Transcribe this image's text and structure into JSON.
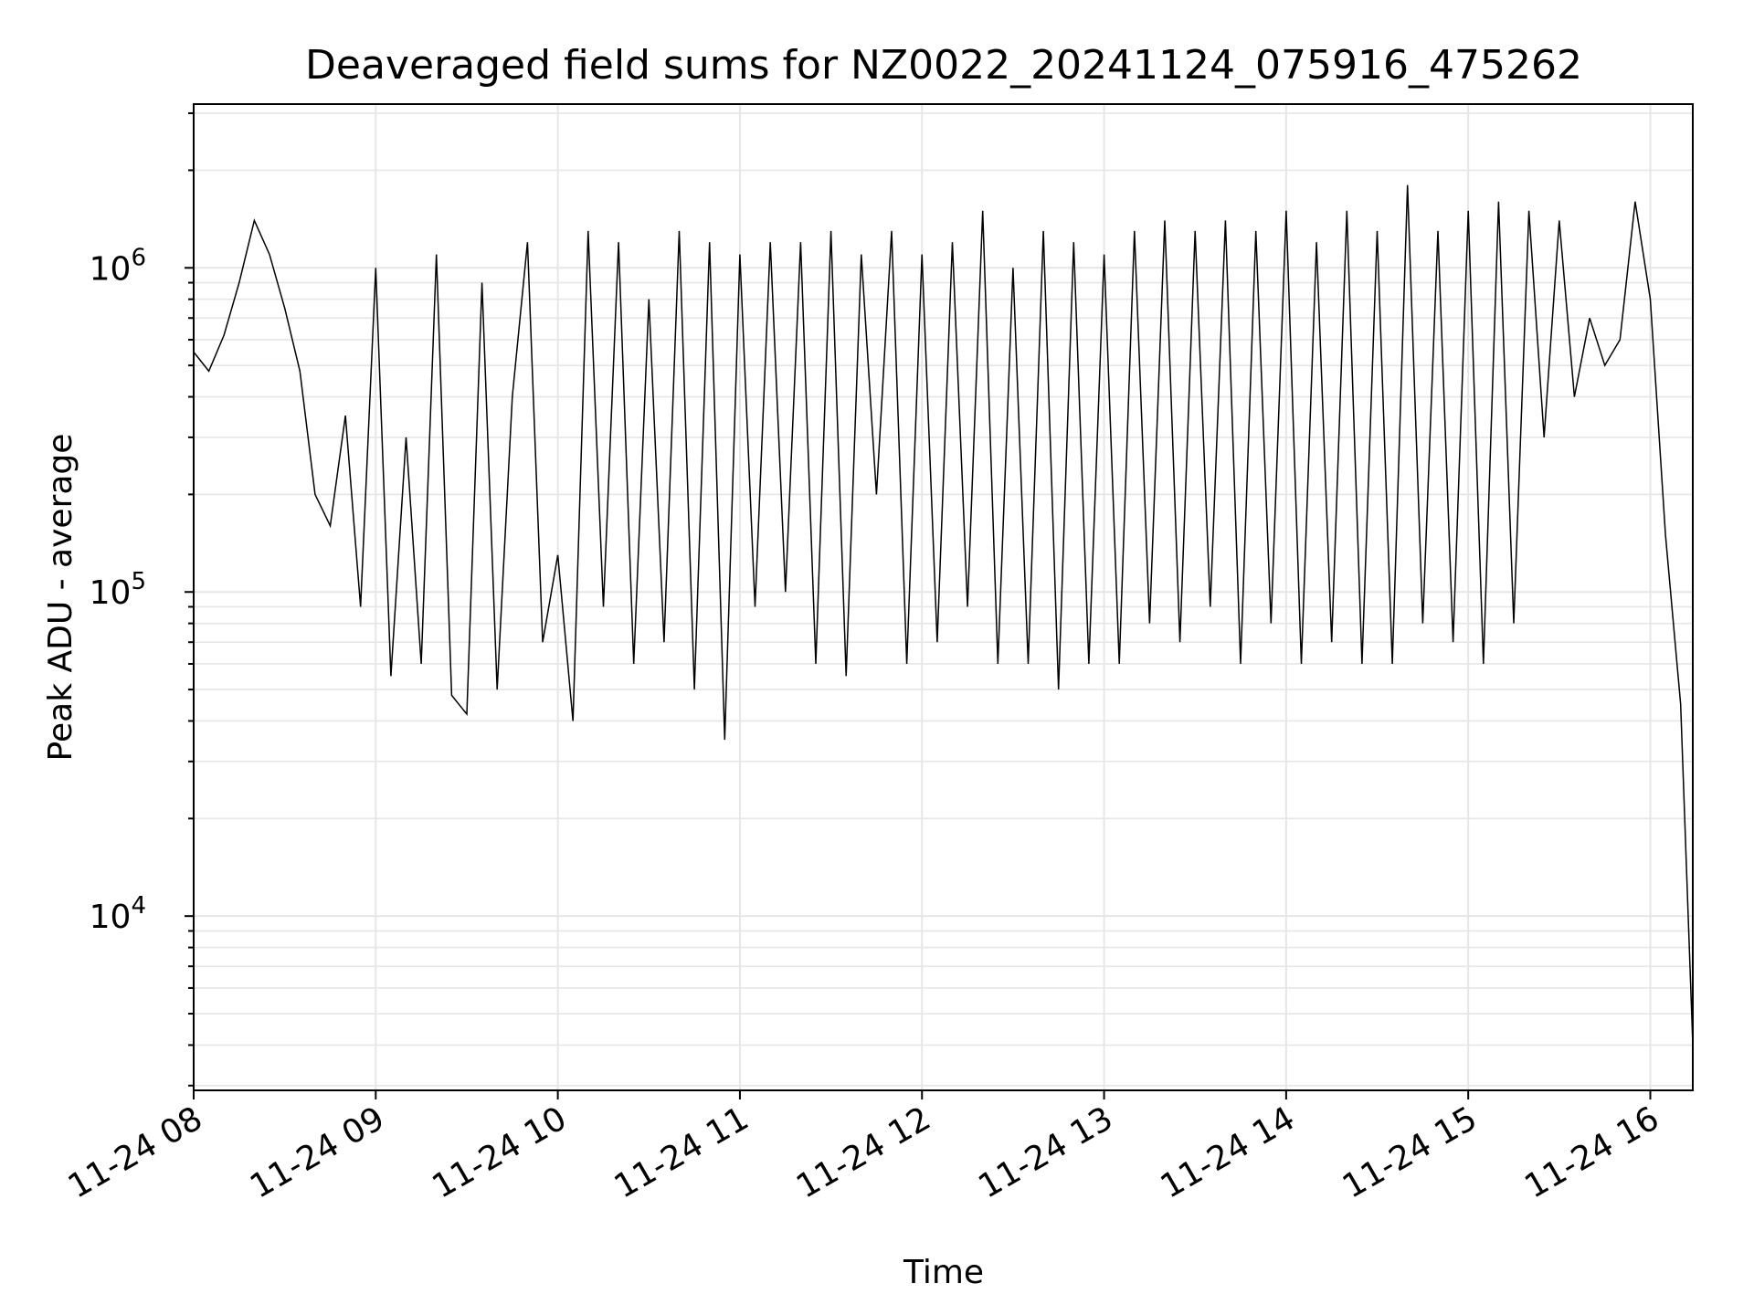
{
  "chart_data": {
    "type": "line",
    "title": "Deaveraged field sums for NZ0022_20241124_075916_475262",
    "xlabel": "Time",
    "ylabel": "Peak ADU - average",
    "yscale": "log",
    "ylim": [
      2900,
      3200000
    ],
    "xlim": [
      "11-24 08:00",
      "11-24 16:14"
    ],
    "grid": true,
    "legend": "none",
    "line_color": "#000000",
    "grid_color": "#e6e6e6",
    "x_ticks": [
      "11-24 08",
      "11-24 09",
      "11-24 10",
      "11-24 11",
      "11-24 12",
      "11-24 13",
      "11-24 14",
      "11-24 15",
      "11-24 16"
    ],
    "y_ticks": [
      {
        "value": 10000,
        "base": "10",
        "exp": "4"
      },
      {
        "value": 100000,
        "base": "10",
        "exp": "5"
      },
      {
        "value": 1000000,
        "base": "10",
        "exp": "6"
      }
    ],
    "series": [
      {
        "x": [
          "08:00",
          "08:05",
          "08:10",
          "08:15",
          "08:20",
          "08:25",
          "08:30",
          "08:35",
          "08:40",
          "08:45",
          "08:50",
          "08:55",
          "09:00",
          "09:05",
          "09:10",
          "09:15",
          "09:20",
          "09:25",
          "09:30",
          "09:35",
          "09:40",
          "09:45",
          "09:50",
          "09:55",
          "10:00",
          "10:05",
          "10:10",
          "10:15",
          "10:20",
          "10:25",
          "10:30",
          "10:35",
          "10:40",
          "10:45",
          "10:50",
          "10:55",
          "11:00",
          "11:05",
          "11:10",
          "11:15",
          "11:20",
          "11:25",
          "11:30",
          "11:35",
          "11:40",
          "11:45",
          "11:50",
          "11:55",
          "12:00",
          "12:05",
          "12:10",
          "12:15",
          "12:20",
          "12:25",
          "12:30",
          "12:35",
          "12:40",
          "12:45",
          "12:50",
          "12:55",
          "13:00",
          "13:05",
          "13:10",
          "13:15",
          "13:20",
          "13:25",
          "13:30",
          "13:35",
          "13:40",
          "13:45",
          "13:50",
          "13:55",
          "14:00",
          "14:05",
          "14:10",
          "14:15",
          "14:20",
          "14:25",
          "14:30",
          "14:35",
          "14:40",
          "14:45",
          "14:50",
          "14:55",
          "15:00",
          "15:05",
          "15:10",
          "15:15",
          "15:20",
          "15:25",
          "15:30",
          "15:35",
          "15:40",
          "15:45",
          "15:50",
          "15:55",
          "16:00",
          "16:05",
          "16:10",
          "16:14"
        ],
        "values": [
          550000,
          480000,
          620000,
          900000,
          1400000,
          1100000,
          750000,
          480000,
          200000,
          160000,
          350000,
          90000,
          1000000,
          55000,
          300000,
          60000,
          1100000,
          48000,
          42000,
          900000,
          50000,
          400000,
          1200000,
          70000,
          130000,
          40000,
          1300000,
          90000,
          1200000,
          60000,
          800000,
          70000,
          1300000,
          50000,
          1200000,
          35000,
          1100000,
          90000,
          1200000,
          100000,
          1200000,
          60000,
          1300000,
          55000,
          1100000,
          200000,
          1300000,
          60000,
          1100000,
          70000,
          1200000,
          90000,
          1500000,
          60000,
          1000000,
          60000,
          1300000,
          50000,
          1200000,
          60000,
          1100000,
          60000,
          1300000,
          80000,
          1400000,
          70000,
          1300000,
          90000,
          1400000,
          60000,
          1300000,
          80000,
          1500000,
          60000,
          1200000,
          70000,
          1500000,
          60000,
          1300000,
          60000,
          1800000,
          80000,
          1300000,
          70000,
          1500000,
          60000,
          1600000,
          80000,
          1500000,
          300000,
          1400000,
          400000,
          700000,
          500000,
          600000,
          1600000,
          800000,
          150000,
          45000,
          4000
        ]
      }
    ]
  }
}
